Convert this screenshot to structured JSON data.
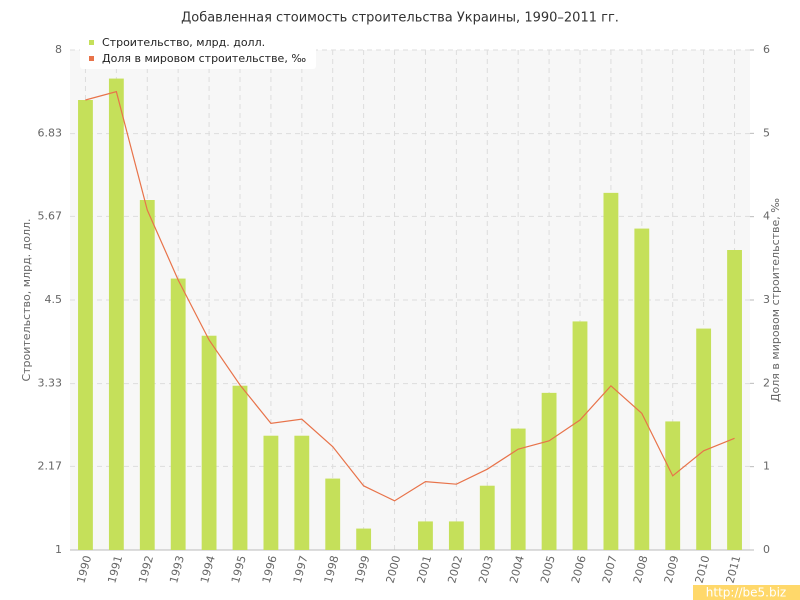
{
  "chart_data": {
    "type": "bar-line",
    "title": "Добавленная стоимость строительства Украины, 1990–2011 гг.",
    "y_label": "Строительство, млрд. долл.",
    "y2_label": "Доля в мировом строительстве, ‰",
    "watermark": "http://be5.biz",
    "categories": [
      "1990",
      "1991",
      "1992",
      "1993",
      "1994",
      "1995",
      "1996",
      "1997",
      "1998",
      "1999",
      "2000",
      "2001",
      "2002",
      "2003",
      "2004",
      "2005",
      "2006",
      "2007",
      "2008",
      "2009",
      "2010",
      "2011"
    ],
    "series": [
      {
        "name": "Строительство, млрд. долл.",
        "type": "bar",
        "color": "#c5e05a",
        "values": [
          7.3,
          7.6,
          5.9,
          4.8,
          4.0,
          3.3,
          2.6,
          2.6,
          2.0,
          1.3,
          1.0,
          1.4,
          1.4,
          1.9,
          2.7,
          3.2,
          4.2,
          6.0,
          5.5,
          2.8,
          4.1,
          5.2
        ]
      },
      {
        "name": "Доля в мировом строительстве, ‰",
        "type": "line",
        "axis": "y2",
        "color": "#e8734a",
        "values": [
          5.4,
          5.5,
          4.08,
          3.24,
          2.52,
          1.98,
          1.52,
          1.57,
          1.24,
          0.77,
          0.59,
          0.82,
          0.79,
          0.97,
          1.21,
          1.31,
          1.56,
          1.97,
          1.64,
          0.89,
          1.19,
          1.34
        ]
      }
    ],
    "ylim": [
      1,
      8
    ],
    "yticks": [
      1,
      2.17,
      3.33,
      4.5,
      5.67,
      6.83,
      8
    ],
    "y2lim": [
      0,
      6
    ],
    "y2ticks": [
      0,
      1,
      2,
      3,
      4,
      5,
      6
    ],
    "grid": true,
    "legend": "top-left"
  }
}
